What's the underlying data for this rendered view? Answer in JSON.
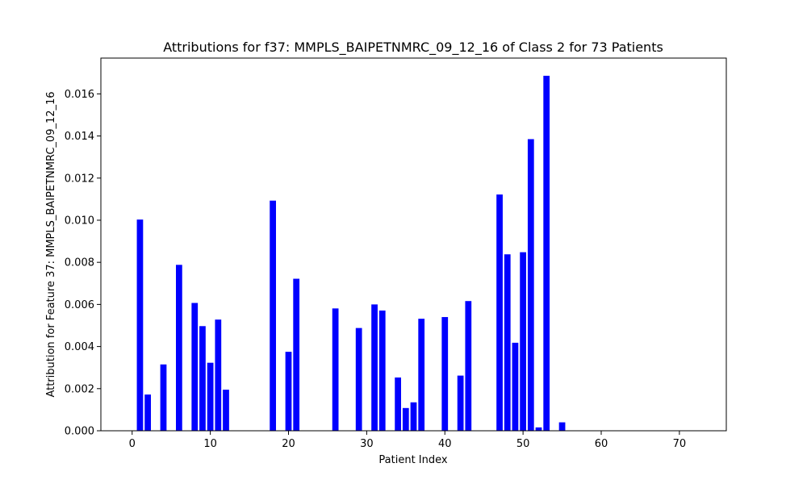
{
  "chart_data": {
    "type": "bar",
    "title": "Attributions for f37: MMPLS_BAIPETNMRC_09_12_16 of Class 2 for 73 Patients",
    "xlabel": "Patient Index",
    "ylabel": "Attribution for Feature 37: MMPLS_BAIPETNMRC_09_12_16",
    "xlim": [
      -4,
      76
    ],
    "ylim": [
      0,
      0.0177
    ],
    "xticks": [
      0,
      10,
      20,
      30,
      40,
      50,
      60,
      70
    ],
    "yticks": [
      0.0,
      0.002,
      0.004,
      0.006,
      0.008,
      0.01,
      0.012,
      0.014,
      0.016
    ],
    "ytick_labels": [
      "0.000",
      "0.002",
      "0.004",
      "0.006",
      "0.008",
      "0.010",
      "0.012",
      "0.014",
      "0.016"
    ],
    "bar_color": "#0000ff",
    "grid": false,
    "legend": "none",
    "x": [
      0,
      1,
      2,
      3,
      4,
      5,
      6,
      7,
      8,
      9,
      10,
      11,
      12,
      13,
      14,
      15,
      16,
      17,
      18,
      19,
      20,
      21,
      22,
      23,
      24,
      25,
      26,
      27,
      28,
      29,
      30,
      31,
      32,
      33,
      34,
      35,
      36,
      37,
      38,
      39,
      40,
      41,
      42,
      43,
      44,
      45,
      46,
      47,
      48,
      49,
      50,
      51,
      52,
      53,
      54,
      55,
      56,
      57,
      58,
      59,
      60,
      61,
      62,
      63,
      64,
      65,
      66,
      67,
      68,
      69,
      70,
      71,
      72
    ],
    "values": [
      0,
      0.01003,
      0.00172,
      0,
      0.00315,
      0,
      0.00788,
      0,
      0.00607,
      0.00497,
      0.00323,
      0.00528,
      0.00195,
      0,
      0,
      0,
      0,
      0,
      0.01093,
      0,
      0.00375,
      0.00722,
      0,
      0,
      0,
      0,
      0.00581,
      0,
      0,
      0.00488,
      0,
      0.006,
      0.00571,
      0,
      0.00253,
      0.00108,
      0.00135,
      0.00532,
      0,
      0,
      0.0054,
      0,
      0.00262,
      0.00616,
      0,
      0,
      0,
      0.01122,
      0.00838,
      0.00418,
      0.00848,
      0.01385,
      0.00016,
      0.01686,
      0,
      0.0004,
      0,
      0,
      0,
      0,
      0,
      0,
      0,
      0,
      0,
      0,
      0,
      0,
      0,
      0,
      0,
      0,
      0
    ]
  }
}
